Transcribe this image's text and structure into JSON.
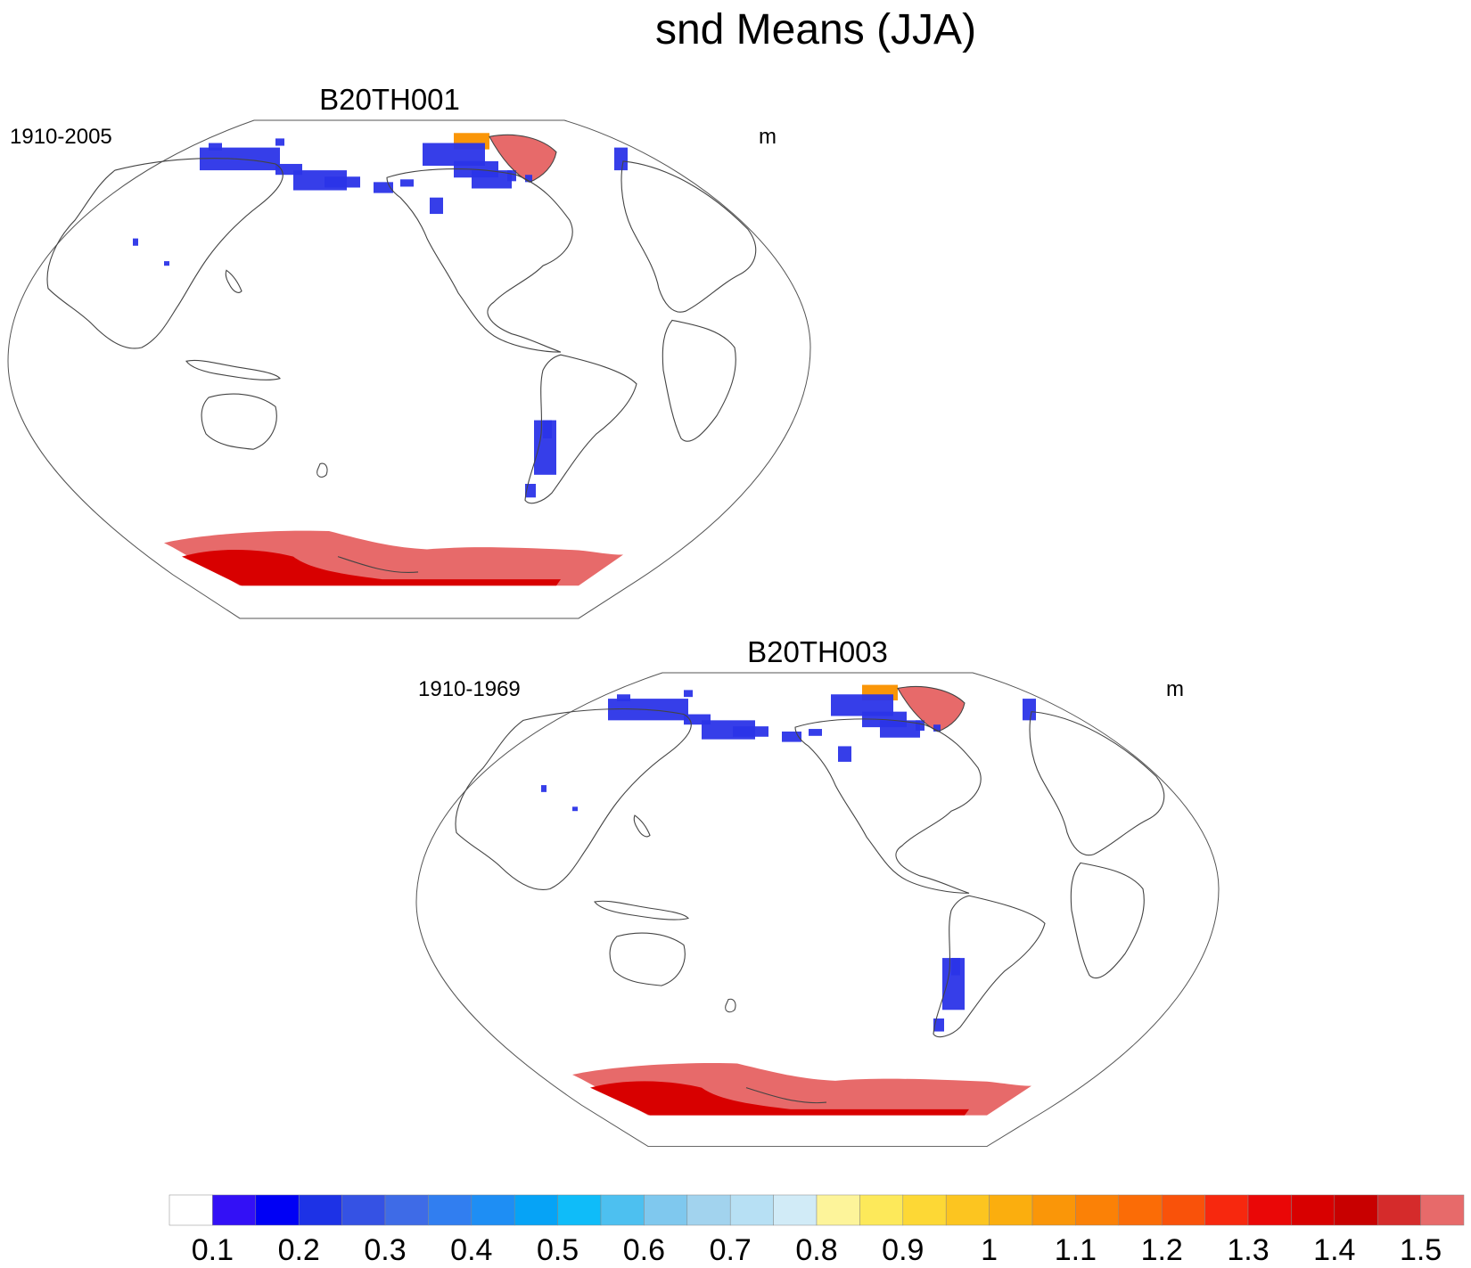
{
  "title": "snd Means (JJA)",
  "panels": [
    {
      "title": "B20TH001",
      "left_label": "1910-2005",
      "right_label": "m"
    },
    {
      "title": "B20TH003",
      "left_label": "1910-1969",
      "right_label": "m"
    }
  ],
  "colorbar": {
    "labels": [
      "0.1",
      "0.2",
      "0.3",
      "0.4",
      "0.5",
      "0.6",
      "0.7",
      "0.8",
      "0.9",
      "1",
      "1.1",
      "1.2",
      "1.3",
      "1.4",
      "1.5"
    ],
    "colors": [
      "#ffffff",
      "#3310f6",
      "#0000f5",
      "#1d32e6",
      "#3552e4",
      "#3e6be7",
      "#317ef0",
      "#1e8ef4",
      "#06a3f6",
      "#0fbcf9",
      "#4dc0f0",
      "#7fc8ee",
      "#a2d3ee",
      "#b7e0f4",
      "#d1ebf7",
      "#fdf49a",
      "#fde95a",
      "#fdd835",
      "#fcc520",
      "#fbae0e",
      "#fa9608",
      "#fb8106",
      "#fb6c06",
      "#f9520a",
      "#f7280e",
      "#ea0707",
      "#d80000",
      "#c80000",
      "#d52b2b",
      "#e76a6a"
    ]
  },
  "legend_colors": {
    "land_outline": "#444444",
    "frame": "#555555",
    "antarctica": "#e76a6a",
    "antarctica_deep": "#d80000",
    "snow_blue": "#2b34e8"
  }
}
